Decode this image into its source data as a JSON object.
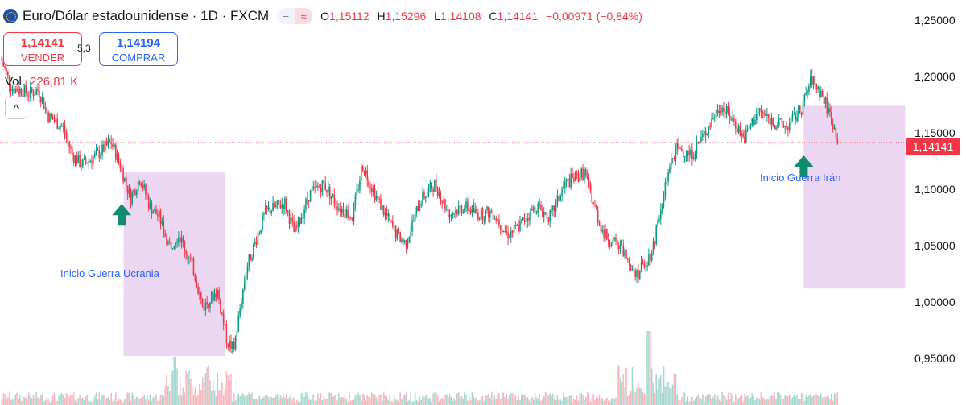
{
  "header": {
    "title": "Euro/Dólar estadounidense · 1D · FXCM",
    "o_label": "O",
    "o_value": "1,15112",
    "h_label": "H",
    "h_value": "1,15296",
    "l_label": "L",
    "l_value": "1,14108",
    "c_label": "C",
    "c_value": "1,14141",
    "change": "−0,00971 (−0,84%)",
    "minus_glyph": "−",
    "approx_glyph": "≈"
  },
  "trade": {
    "sell_price": "1,14141",
    "sell_label": "VENDER",
    "spread": "5,3",
    "buy_price": "1,14194",
    "buy_label": "COMPRAR"
  },
  "volume": {
    "label": "Vol.",
    "value": "226,81 K"
  },
  "collapse_glyph": "^",
  "colors": {
    "up": "#089981",
    "down": "#f23645",
    "zone": "#e7d0ef",
    "arrow": "#0f8b6f",
    "last": "#f23645"
  },
  "chart_data": {
    "type": "candlestick",
    "title": "Euro/Dólar estadounidense · 1D · FXCM",
    "y_ticks": [
      "1,25000",
      "1,20000",
      "1,15000",
      "1,10000",
      "1,05000",
      "1,00000",
      "0,95000"
    ],
    "y_tick_values": [
      1.25,
      1.2,
      1.15,
      1.1,
      1.05,
      1.0,
      0.95
    ],
    "ylim": [
      0.93,
      1.26
    ],
    "last_price": 1.14141,
    "last_price_label": "1,14141",
    "price_path": [
      [
        0,
        1.218
      ],
      [
        0.012,
        1.19
      ],
      [
        0.03,
        1.185
      ],
      [
        0.04,
        1.188
      ],
      [
        0.05,
        1.165
      ],
      [
        0.065,
        1.155
      ],
      [
        0.075,
        1.13
      ],
      [
        0.085,
        1.122
      ],
      [
        0.1,
        1.13
      ],
      [
        0.115,
        1.142
      ],
      [
        0.125,
        1.12
      ],
      [
        0.135,
        1.092
      ],
      [
        0.145,
        1.11
      ],
      [
        0.155,
        1.085
      ],
      [
        0.165,
        1.075
      ],
      [
        0.175,
        1.05
      ],
      [
        0.185,
        1.06
      ],
      [
        0.2,
        1.03
      ],
      [
        0.21,
        0.995
      ],
      [
        0.225,
        1.01
      ],
      [
        0.235,
        0.965
      ],
      [
        0.242,
        0.958
      ],
      [
        0.255,
        1.03
      ],
      [
        0.275,
        1.08
      ],
      [
        0.295,
        1.088
      ],
      [
        0.305,
        1.06
      ],
      [
        0.32,
        1.095
      ],
      [
        0.335,
        1.105
      ],
      [
        0.35,
        1.085
      ],
      [
        0.365,
        1.075
      ],
      [
        0.375,
        1.122
      ],
      [
        0.39,
        1.092
      ],
      [
        0.41,
        1.06
      ],
      [
        0.42,
        1.052
      ],
      [
        0.435,
        1.09
      ],
      [
        0.45,
        1.105
      ],
      [
        0.465,
        1.078
      ],
      [
        0.48,
        1.085
      ],
      [
        0.495,
        1.078
      ],
      [
        0.51,
        1.08
      ],
      [
        0.525,
        1.06
      ],
      [
        0.535,
        1.065
      ],
      [
        0.555,
        1.085
      ],
      [
        0.57,
        1.075
      ],
      [
        0.585,
        1.105
      ],
      [
        0.605,
        1.115
      ],
      [
        0.615,
        1.085
      ],
      [
        0.625,
        1.06
      ],
      [
        0.645,
        1.045
      ],
      [
        0.66,
        1.025
      ],
      [
        0.675,
        1.045
      ],
      [
        0.685,
        1.09
      ],
      [
        0.7,
        1.138
      ],
      [
        0.715,
        1.13
      ],
      [
        0.73,
        1.15
      ],
      [
        0.745,
        1.175
      ],
      [
        0.76,
        1.16
      ],
      [
        0.77,
        1.145
      ],
      [
        0.785,
        1.17
      ],
      [
        0.8,
        1.16
      ],
      [
        0.815,
        1.155
      ],
      [
        0.83,
        1.172
      ],
      [
        0.84,
        1.198
      ],
      [
        0.85,
        1.185
      ],
      [
        0.86,
        1.165
      ],
      [
        0.868,
        1.141
      ]
    ],
    "volume": {
      "label": "Vol.",
      "value": "226,81 K"
    },
    "annotations": [
      {
        "type": "zone",
        "x0": 0.128,
        "x1": 0.233,
        "y_top": 1.115,
        "y_bottom": 0.952
      },
      {
        "type": "zone",
        "x0": 0.832,
        "x1": 0.937,
        "y_top": 1.174,
        "y_bottom": 1.012
      },
      {
        "type": "arrow",
        "x": 0.126,
        "y": 1.087,
        "direction": "up"
      },
      {
        "type": "arrow",
        "x": 0.832,
        "y": 1.13,
        "direction": "up"
      },
      {
        "type": "text",
        "text": "Inicio Guerra Ucrania",
        "x": 0.104,
        "y": 1.025
      },
      {
        "type": "text",
        "text": "Inicio Guerra Irán",
        "x": 0.831,
        "y": 1.11
      }
    ]
  }
}
